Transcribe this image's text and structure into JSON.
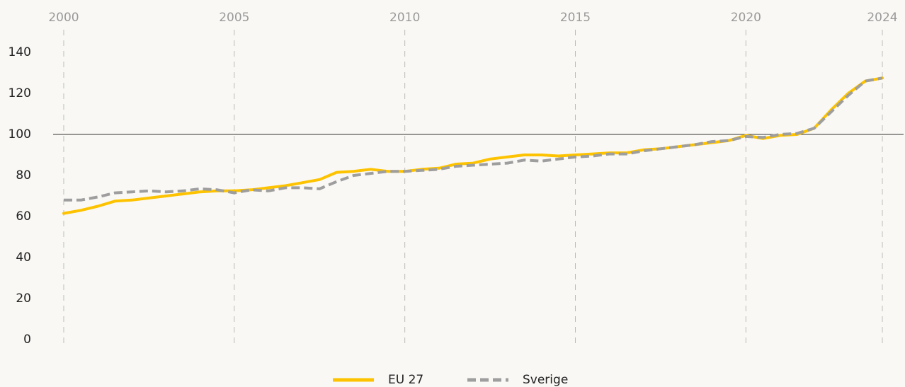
{
  "chart_data": {
    "type": "line",
    "x": [
      2000,
      2000.5,
      2001,
      2001.5,
      2002,
      2002.5,
      2003,
      2003.5,
      2004,
      2004.5,
      2005,
      2005.5,
      2006,
      2006.5,
      2007,
      2007.5,
      2008,
      2008.5,
      2009,
      2009.5,
      2010,
      2010.5,
      2011,
      2011.5,
      2012,
      2012.5,
      2013,
      2013.5,
      2014,
      2014.5,
      2015,
      2015.5,
      2016,
      2016.5,
      2017,
      2017.5,
      2018,
      2018.5,
      2019,
      2019.5,
      2020,
      2020.5,
      2021,
      2021.5,
      2022,
      2022.5,
      2023,
      2023.5,
      2024
    ],
    "series": [
      {
        "name": "EU 27",
        "color": "#fdc300",
        "dashed": false,
        "values": [
          61.5,
          63,
          65,
          67.5,
          68,
          69,
          70,
          71,
          72,
          72.5,
          72.5,
          73,
          74,
          75,
          76.5,
          78,
          81.5,
          82,
          83,
          82,
          82,
          83,
          83.5,
          85.5,
          86,
          88,
          89,
          90,
          90,
          89.5,
          90,
          90.5,
          91,
          91,
          92.5,
          93,
          94,
          95,
          96,
          97,
          99.5,
          98,
          99.5,
          100,
          103,
          112,
          120,
          126,
          127.5
        ]
      },
      {
        "name": "Sverige",
        "color": "#9e9e9e",
        "dashed": true,
        "values": [
          68,
          68,
          69.5,
          71.5,
          72,
          72.5,
          72,
          72.5,
          73.5,
          73,
          71.5,
          73,
          72.5,
          74,
          74,
          73.5,
          77,
          80,
          81,
          82,
          82,
          82.5,
          83,
          84.5,
          85,
          85.5,
          86,
          87.5,
          87,
          88,
          89,
          89.5,
          90.5,
          90.5,
          92,
          93,
          94,
          95,
          96.5,
          97,
          99,
          98.5,
          100,
          100.5,
          103,
          111,
          119,
          126,
          127.5
        ]
      }
    ],
    "xlim": [
      2000,
      2024
    ],
    "xticks": [
      2000,
      2005,
      2010,
      2015,
      2020,
      2024
    ],
    "ylim": [
      0,
      140
    ],
    "yticks": [
      0,
      20,
      40,
      60,
      80,
      100,
      120,
      140
    ],
    "reference_line": 100,
    "grid": true,
    "legend": "bottom"
  }
}
